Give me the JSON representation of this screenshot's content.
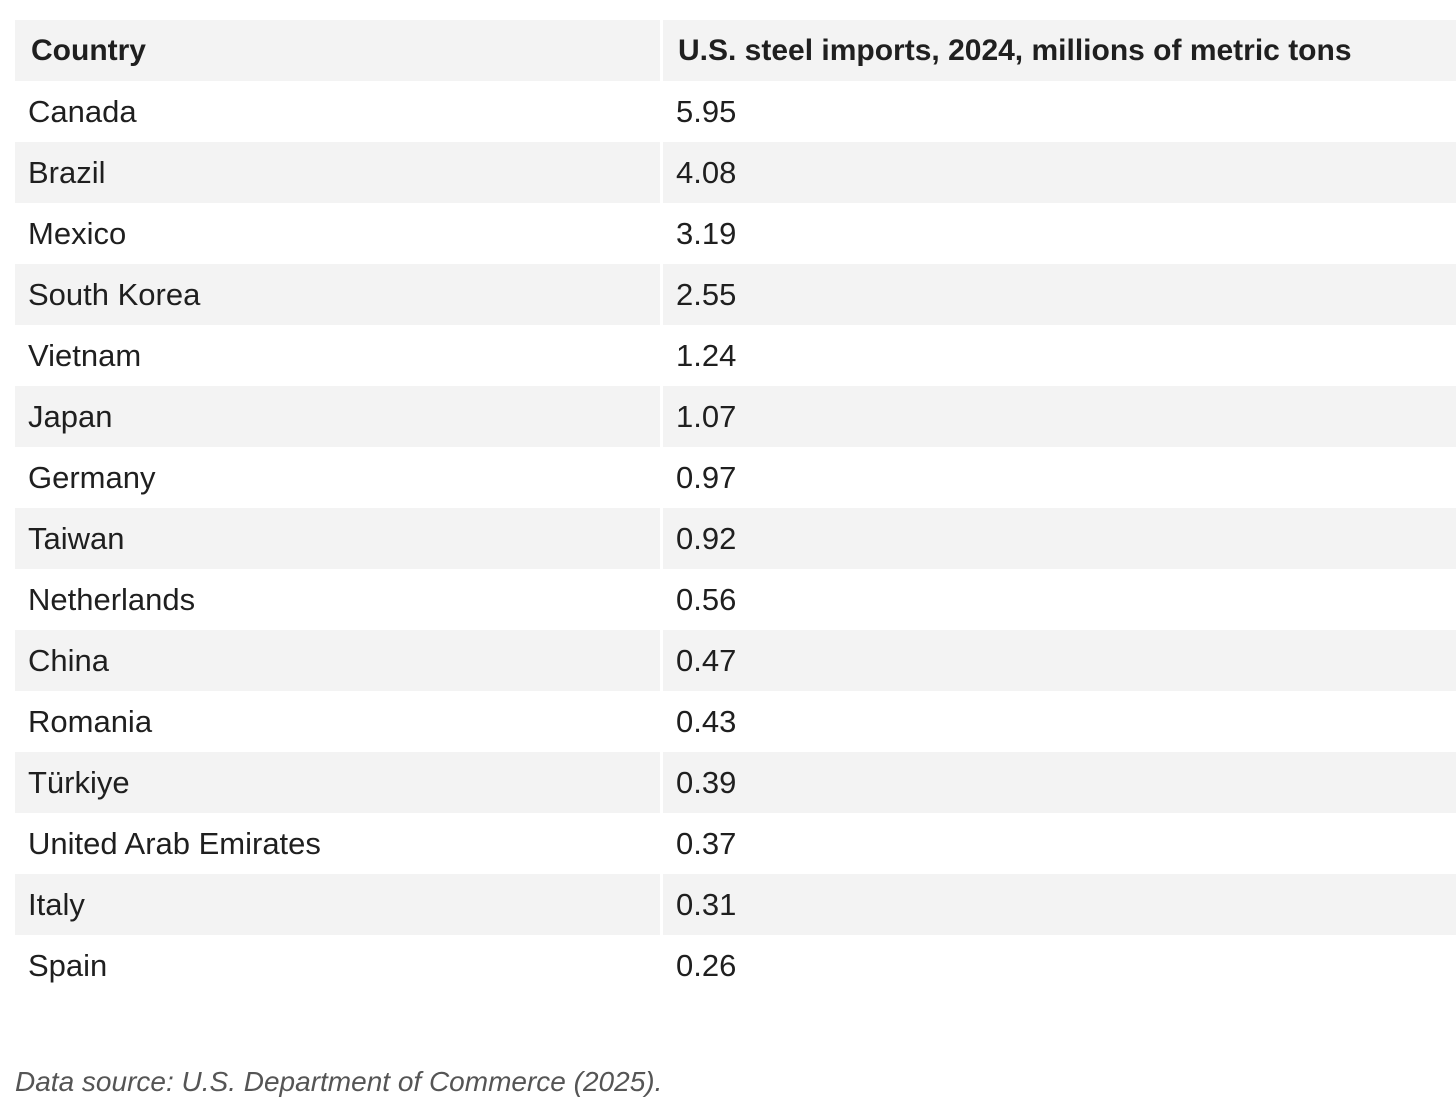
{
  "chart_data": {
    "type": "table",
    "columns": [
      "Country",
      "U.S. steel imports, 2024, millions of metric tons"
    ],
    "rows": [
      [
        "Canada",
        "5.95"
      ],
      [
        "Brazil",
        "4.08"
      ],
      [
        "Mexico",
        "3.19"
      ],
      [
        "South Korea",
        "2.55"
      ],
      [
        "Vietnam",
        "1.24"
      ],
      [
        "Japan",
        "1.07"
      ],
      [
        "Germany",
        "0.97"
      ],
      [
        "Taiwan",
        "0.92"
      ],
      [
        "Netherlands",
        "0.56"
      ],
      [
        "China",
        "0.47"
      ],
      [
        "Romania",
        "0.43"
      ],
      [
        "Türkiye",
        "0.39"
      ],
      [
        "United Arab Emirates",
        "0.37"
      ],
      [
        "Italy",
        "0.31"
      ],
      [
        "Spain",
        "0.26"
      ]
    ]
  },
  "source_note": "Data source: U.S. Department of Commerce (2025).",
  "colors": {
    "stripe": "#f3f3f3",
    "background": "#ffffff",
    "text": "#1f1f1f",
    "source_text": "#555555"
  }
}
